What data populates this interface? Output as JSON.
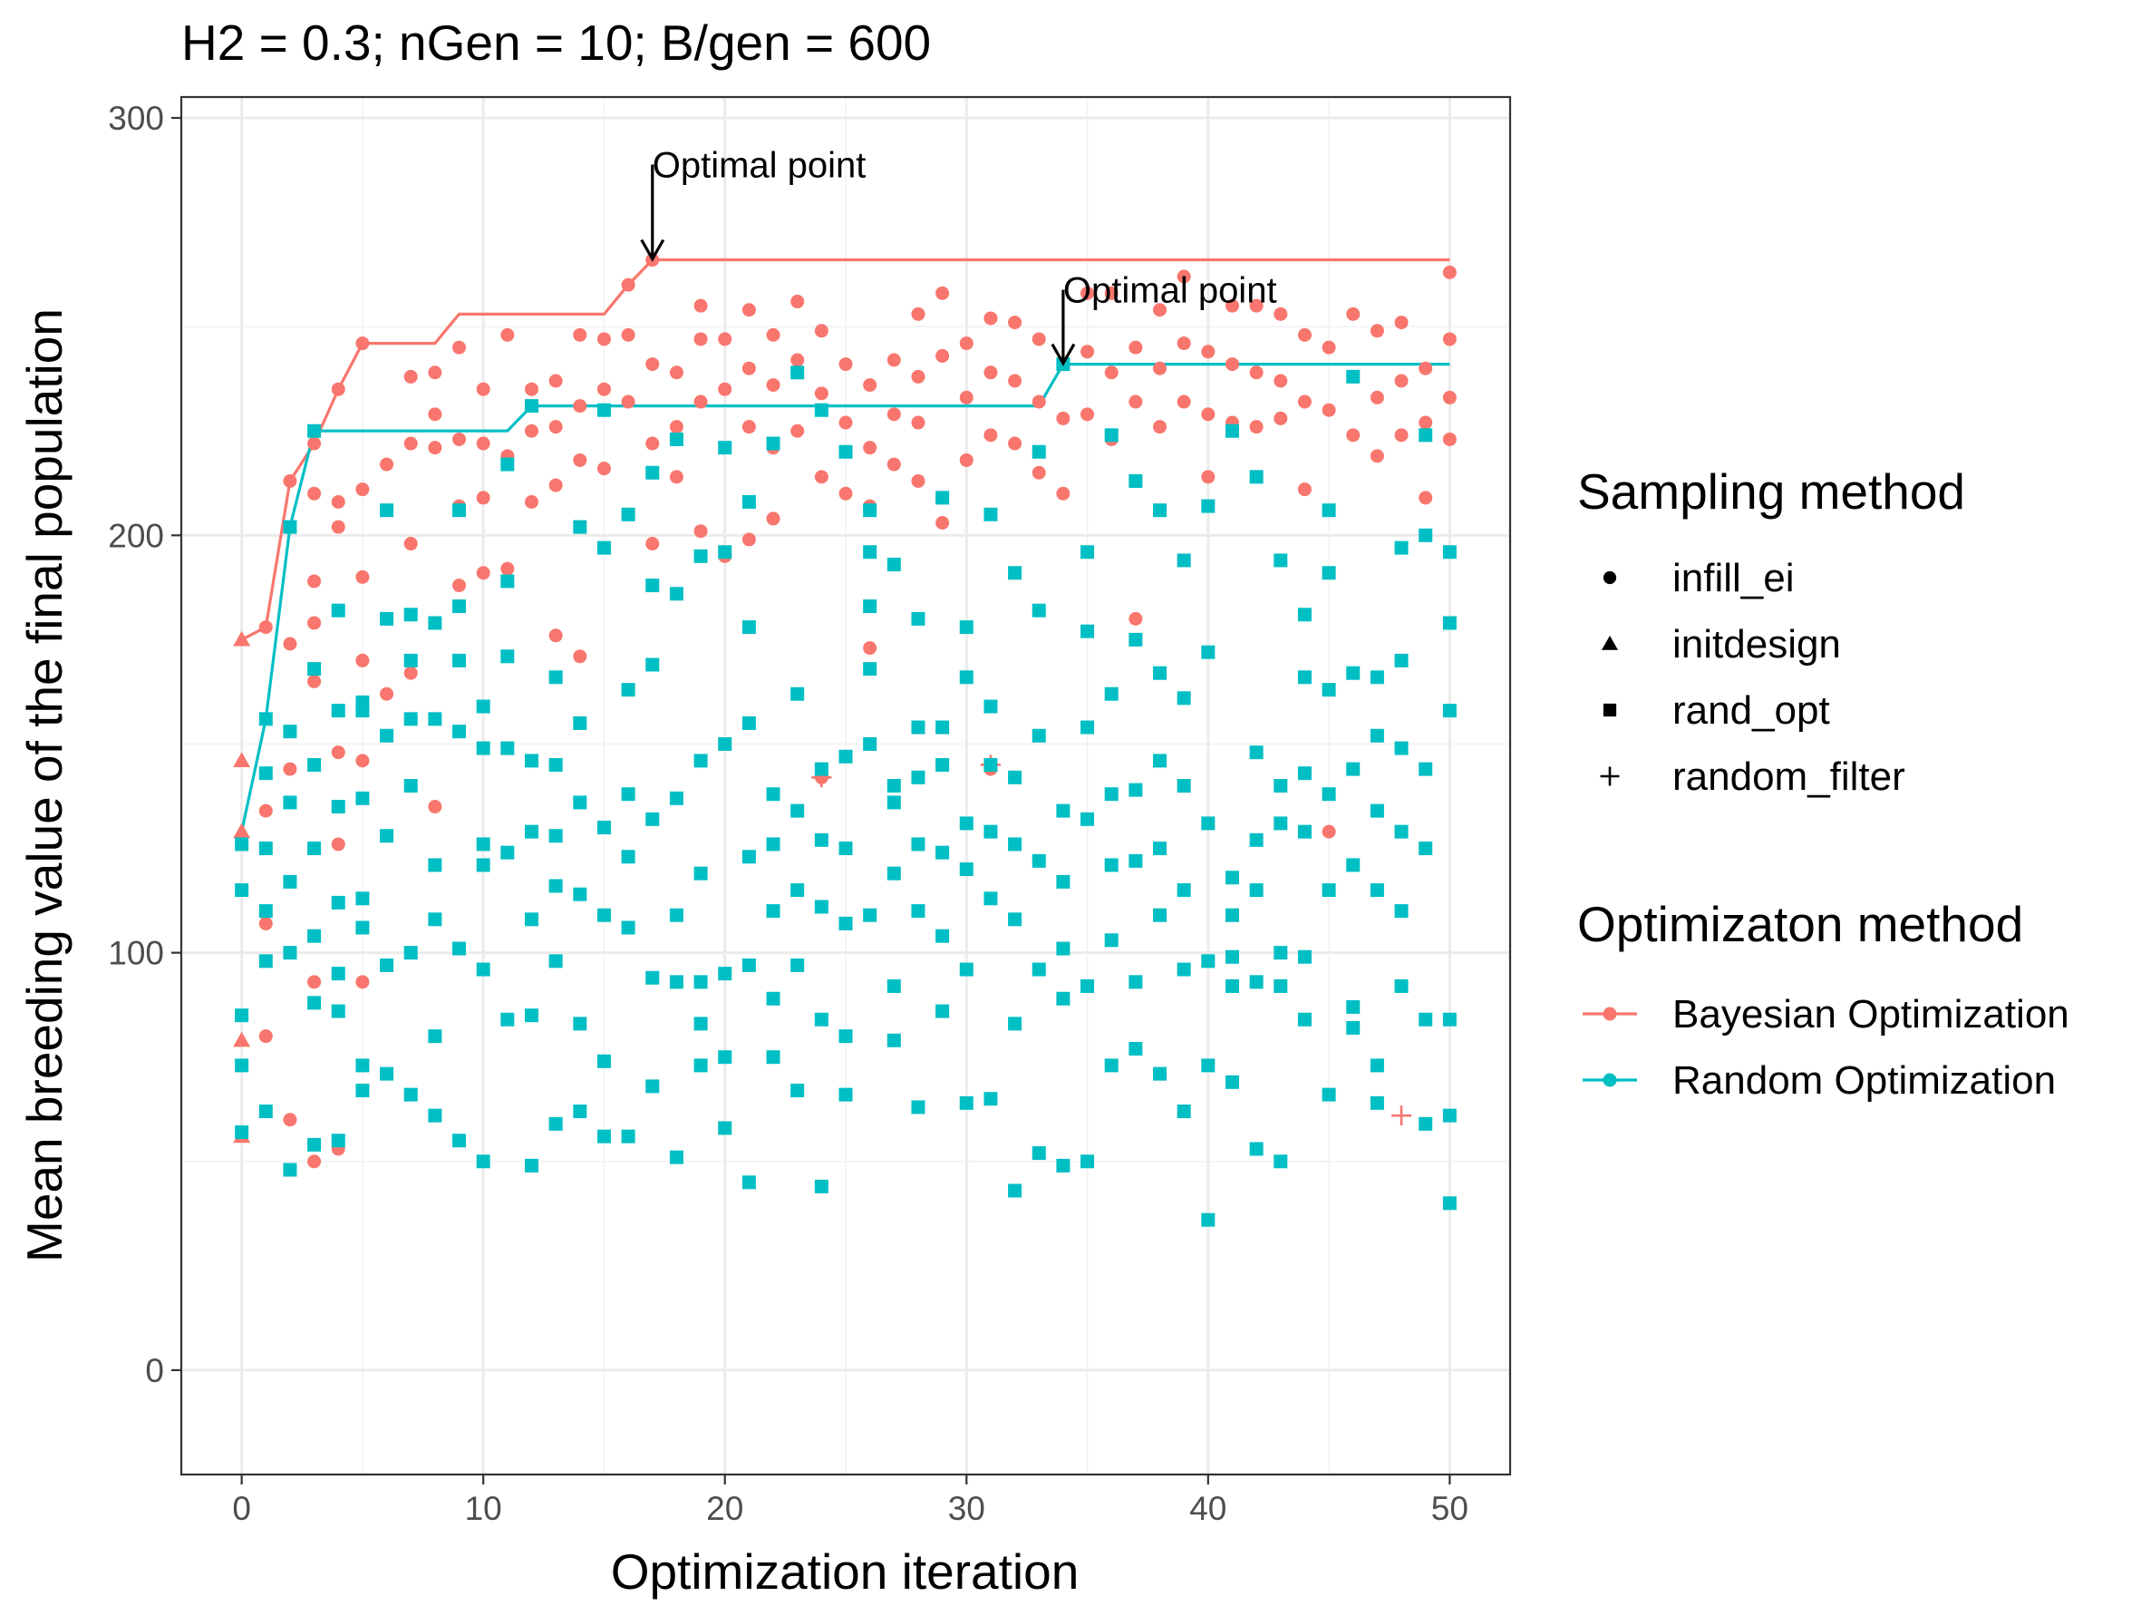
{
  "chart_data": {
    "type": "scatter",
    "title": "H2 = 0.3; nGen = 10; B/gen = 600",
    "xlabel": "Optimization iteration",
    "ylabel": "Mean breeding value of the final population",
    "xlim": [
      -2.5,
      52.5
    ],
    "ylim": [
      -25,
      305
    ],
    "x_ticks": [
      0,
      10,
      20,
      30,
      40,
      50
    ],
    "y_ticks": [
      0,
      100,
      200,
      300
    ],
    "x_tick_labels": [
      "0",
      "10",
      "20",
      "30",
      "40",
      "50"
    ],
    "y_tick_labels": [
      "0",
      "100",
      "200",
      "300"
    ],
    "grid": true,
    "colors": {
      "Bayesian Optimization": "#F8766D",
      "Random Optimization": "#00BFC4"
    },
    "legend": {
      "placement": "right",
      "shape_title": "Sampling method",
      "shapes": [
        {
          "label": "infill_ei",
          "shape": "circle"
        },
        {
          "label": "initdesign",
          "shape": "triangle"
        },
        {
          "label": "rand_opt",
          "shape": "square"
        },
        {
          "label": "random_filter",
          "shape": "plus"
        }
      ],
      "color_title": "Optimizaton method",
      "colors": [
        {
          "label": "Bayesian Optimization",
          "color": "#F8766D"
        },
        {
          "label": "Random Optimization",
          "color": "#00BFC4"
        }
      ]
    },
    "annotations": [
      {
        "text": "Optimal point",
        "x": 17,
        "y": 266,
        "series": "Bayesian Optimization"
      },
      {
        "text": "Optimal point",
        "x": 34,
        "y": 241,
        "series": "Random Optimization"
      }
    ],
    "best_so_far": [
      {
        "name": "Bayesian Optimization",
        "x": [
          0,
          1,
          2,
          3,
          4,
          5,
          6,
          7,
          8,
          9,
          10,
          11,
          12,
          13,
          14,
          15,
          16,
          17,
          18,
          19,
          20,
          21,
          22,
          23,
          24,
          25,
          26,
          27,
          28,
          29,
          30,
          31,
          32,
          33,
          34,
          35,
          36,
          37,
          38,
          39,
          40,
          41,
          42,
          43,
          44,
          45,
          46,
          47,
          48,
          49,
          50
        ],
        "y": [
          175,
          178,
          213,
          222,
          235,
          246,
          246,
          246,
          246,
          253,
          253,
          253,
          253,
          253,
          253,
          253,
          260,
          266,
          266,
          266,
          266,
          266,
          266,
          266,
          266,
          266,
          266,
          266,
          266,
          266,
          266,
          266,
          266,
          266,
          266,
          266,
          266,
          266,
          266,
          266,
          266,
          266,
          266,
          266,
          266,
          266,
          266,
          266,
          266,
          266,
          266
        ]
      },
      {
        "name": "Random Optimization",
        "x": [
          0,
          1,
          2,
          3,
          4,
          5,
          6,
          7,
          8,
          9,
          10,
          11,
          12,
          13,
          14,
          15,
          16,
          17,
          18,
          19,
          20,
          21,
          22,
          23,
          24,
          25,
          26,
          27,
          28,
          29,
          30,
          31,
          32,
          33,
          34,
          35,
          36,
          37,
          38,
          39,
          40,
          41,
          42,
          43,
          44,
          45,
          46,
          47,
          48,
          49,
          50
        ],
        "y": [
          129,
          156,
          202,
          225,
          225,
          225,
          225,
          225,
          225,
          225,
          225,
          225,
          231,
          231,
          231,
          231,
          231,
          231,
          231,
          231,
          231,
          231,
          231,
          231,
          231,
          231,
          231,
          231,
          231,
          231,
          231,
          231,
          231,
          231,
          241,
          241,
          241,
          241,
          241,
          241,
          241,
          241,
          241,
          241,
          241,
          241,
          241,
          241,
          241,
          241,
          241
        ]
      }
    ],
    "series": [
      {
        "name": "Bayesian Optimization",
        "shape": "triangle",
        "x": [
          0,
          0,
          0,
          0,
          0
        ],
        "y": [
          175,
          146,
          129,
          79,
          56
        ]
      },
      {
        "name": "Bayesian Optimization",
        "shape": "circle",
        "x": [
          1,
          1,
          1,
          1,
          2,
          2,
          2,
          2,
          3,
          3,
          3,
          3,
          3,
          3,
          3,
          4,
          4,
          4,
          4,
          4,
          4,
          5,
          5,
          5,
          5,
          5,
          5,
          6,
          6,
          6,
          6,
          7,
          7,
          7,
          7,
          8,
          8,
          8,
          8,
          9,
          9,
          9,
          9,
          10,
          10,
          10,
          10,
          11,
          11,
          11,
          12,
          12,
          12,
          13,
          13,
          13,
          13,
          14,
          14,
          14,
          14,
          15,
          15,
          15,
          16,
          16,
          16,
          16,
          17,
          17,
          17,
          17,
          18,
          18,
          18,
          19,
          19,
          19,
          19,
          20,
          20,
          20,
          21,
          21,
          21,
          21,
          22,
          22,
          22,
          22,
          23,
          23,
          23,
          24,
          24,
          24,
          24,
          25,
          25,
          25,
          26,
          26,
          26,
          26,
          27,
          27,
          27,
          28,
          28,
          28,
          28,
          29,
          29,
          29,
          30,
          30,
          30,
          31,
          31,
          31,
          31,
          32,
          32,
          32,
          33,
          33,
          33,
          34,
          34,
          34,
          35,
          35,
          35,
          36,
          36,
          36,
          37,
          37,
          37,
          38,
          38,
          38,
          39,
          39,
          39,
          40,
          40,
          40,
          41,
          41,
          41,
          42,
          42,
          42,
          43,
          43,
          43,
          44,
          44,
          44,
          45,
          45,
          45,
          46,
          46,
          46,
          47,
          47,
          47,
          48,
          48,
          48,
          49,
          49,
          49,
          50,
          50,
          50,
          50
        ],
        "y": [
          178,
          134,
          107,
          80,
          213,
          174,
          144,
          60,
          222,
          210,
          189,
          179,
          165,
          93,
          50,
          235,
          208,
          202,
          148,
          126,
          53,
          246,
          211,
          190,
          170,
          146,
          93,
          217,
          180,
          162,
          128,
          238,
          222,
          198,
          167,
          239,
          229,
          221,
          135,
          245,
          223,
          207,
          188,
          235,
          222,
          209,
          191,
          248,
          219,
          192,
          235,
          225,
          208,
          237,
          226,
          212,
          176,
          248,
          231,
          218,
          171,
          247,
          235,
          216,
          260,
          248,
          232,
          205,
          266,
          241,
          222,
          198,
          239,
          226,
          214,
          255,
          247,
          232,
          201,
          247,
          235,
          195,
          254,
          240,
          226,
          199,
          248,
          236,
          221,
          204,
          256,
          242,
          225,
          249,
          234,
          214,
          142,
          241,
          227,
          210,
          236,
          221,
          207,
          173,
          242,
          229,
          217,
          253,
          238,
          227,
          213,
          258,
          243,
          203,
          246,
          233,
          218,
          252,
          239,
          224,
          144,
          251,
          237,
          222,
          247,
          232,
          215,
          241,
          228,
          210,
          258,
          244,
          229,
          258,
          239,
          223,
          245,
          232,
          180,
          254,
          240,
          226,
          262,
          246,
          232,
          244,
          229,
          214,
          255,
          241,
          227,
          255,
          239,
          226,
          253,
          237,
          228,
          248,
          232,
          211,
          245,
          230,
          129,
          253,
          238,
          224,
          249,
          233,
          219,
          251,
          237,
          224,
          240,
          227,
          209,
          263,
          247,
          233,
          223
        ]
      },
      {
        "name": "Bayesian Optimization",
        "shape": "plus",
        "x": [
          24,
          31,
          48
        ],
        "y": [
          142,
          145,
          61
        ]
      },
      {
        "name": "Random Optimization",
        "shape": "square",
        "x": [
          0,
          0,
          0,
          0,
          0,
          1,
          1,
          1,
          1,
          1,
          1,
          2,
          2,
          2,
          2,
          2,
          2,
          3,
          3,
          3,
          3,
          3,
          3,
          3,
          4,
          4,
          4,
          4,
          4,
          4,
          4,
          5,
          5,
          5,
          5,
          5,
          5,
          5,
          6,
          6,
          6,
          6,
          6,
          6,
          7,
          7,
          7,
          7,
          7,
          7,
          8,
          8,
          8,
          8,
          8,
          8,
          9,
          9,
          9,
          9,
          9,
          9,
          10,
          10,
          10,
          10,
          10,
          10,
          11,
          11,
          11,
          11,
          11,
          11,
          12,
          12,
          12,
          12,
          12,
          12,
          13,
          13,
          13,
          13,
          13,
          13,
          14,
          14,
          14,
          14,
          14,
          14,
          15,
          15,
          15,
          15,
          15,
          15,
          16,
          16,
          16,
          16,
          16,
          16,
          17,
          17,
          17,
          17,
          17,
          17,
          18,
          18,
          18,
          18,
          18,
          18,
          19,
          19,
          19,
          19,
          19,
          19,
          20,
          20,
          20,
          20,
          20,
          20,
          21,
          21,
          21,
          21,
          21,
          21,
          22,
          22,
          22,
          22,
          22,
          22,
          23,
          23,
          23,
          23,
          23,
          23,
          24,
          24,
          24,
          24,
          24,
          24,
          25,
          25,
          25,
          25,
          25,
          25,
          26,
          26,
          26,
          26,
          26,
          26,
          27,
          27,
          27,
          27,
          27,
          27,
          28,
          28,
          28,
          28,
          28,
          28,
          29,
          29,
          29,
          29,
          29,
          29,
          30,
          30,
          30,
          30,
          30,
          30,
          31,
          31,
          31,
          31,
          31,
          31,
          32,
          32,
          32,
          32,
          32,
          32,
          33,
          33,
          33,
          33,
          33,
          33,
          34,
          34,
          34,
          34,
          34,
          34,
          35,
          35,
          35,
          35,
          35,
          35,
          36,
          36,
          36,
          36,
          36,
          36,
          37,
          37,
          37,
          37,
          37,
          37,
          38,
          38,
          38,
          38,
          38,
          38,
          39,
          39,
          39,
          39,
          39,
          39,
          40,
          40,
          40,
          40,
          40,
          40,
          41,
          41,
          41,
          41,
          41,
          41,
          42,
          42,
          42,
          42,
          42,
          42,
          43,
          43,
          43,
          43,
          43,
          43,
          44,
          44,
          44,
          44,
          44,
          44,
          45,
          45,
          45,
          45,
          45,
          45,
          46,
          46,
          46,
          46,
          46,
          46,
          47,
          47,
          47,
          47,
          47,
          47,
          48,
          48,
          48,
          48,
          48,
          48,
          49,
          49,
          49,
          49,
          49,
          49,
          50,
          50,
          50,
          50,
          50,
          50
        ],
        "y": [
          126,
          115,
          85,
          73,
          57,
          156,
          143,
          125,
          110,
          98,
          62,
          202,
          153,
          136,
          117,
          100,
          48,
          225,
          168,
          145,
          125,
          104,
          88,
          54,
          182,
          158,
          135,
          112,
          95,
          86,
          55,
          160,
          137,
          113,
          106,
          73,
          67,
          158,
          206,
          180,
          152,
          128,
          97,
          71,
          181,
          170,
          156,
          140,
          100,
          66,
          179,
          156,
          121,
          108,
          80,
          61,
          206,
          183,
          170,
          153,
          101,
          55,
          159,
          149,
          126,
          121,
          96,
          50,
          217,
          189,
          171,
          149,
          124,
          84,
          231,
          146,
          129,
          108,
          85,
          49,
          166,
          145,
          128,
          116,
          98,
          59,
          202,
          155,
          136,
          114,
          83,
          62,
          230,
          197,
          130,
          109,
          74,
          56,
          205,
          163,
          138,
          123,
          106,
          56,
          215,
          188,
          169,
          132,
          94,
          68,
          223,
          186,
          137,
          109,
          93,
          51,
          195,
          146,
          119,
          93,
          83,
          73,
          221,
          196,
          150,
          95,
          75,
          58,
          208,
          178,
          155,
          123,
          97,
          45,
          222,
          138,
          126,
          110,
          89,
          75,
          239,
          162,
          134,
          115,
          97,
          67,
          230,
          144,
          127,
          111,
          84,
          44,
          220,
          147,
          125,
          107,
          80,
          66,
          206,
          196,
          183,
          168,
          150,
          109,
          193,
          140,
          136,
          119,
          92,
          79,
          180,
          154,
          142,
          126,
          110,
          63,
          209,
          154,
          145,
          124,
          104,
          86,
          178,
          166,
          131,
          120,
          96,
          64,
          205,
          159,
          145,
          129,
          113,
          65,
          191,
          142,
          126,
          108,
          83,
          43,
          220,
          182,
          152,
          122,
          96,
          52,
          241,
          134,
          117,
          101,
          89,
          49,
          196,
          177,
          154,
          132,
          92,
          50,
          224,
          162,
          138,
          121,
          103,
          73,
          213,
          175,
          139,
          122,
          93,
          77,
          206,
          167,
          146,
          125,
          109,
          71,
          194,
          161,
          140,
          115,
          96,
          62,
          207,
          172,
          131,
          98,
          73,
          36,
          225,
          118,
          109,
          99,
          92,
          69,
          214,
          148,
          127,
          115,
          93,
          53,
          194,
          140,
          131,
          100,
          92,
          50,
          181,
          166,
          143,
          129,
          99,
          84,
          206,
          191,
          163,
          138,
          115,
          66,
          238,
          167,
          144,
          121,
          87,
          82,
          166,
          152,
          134,
          115,
          73,
          64,
          197,
          170,
          149,
          129,
          110,
          92,
          224,
          200,
          144,
          125,
          84,
          59,
          196,
          179,
          158,
          84,
          61,
          40
        ]
      }
    ]
  }
}
